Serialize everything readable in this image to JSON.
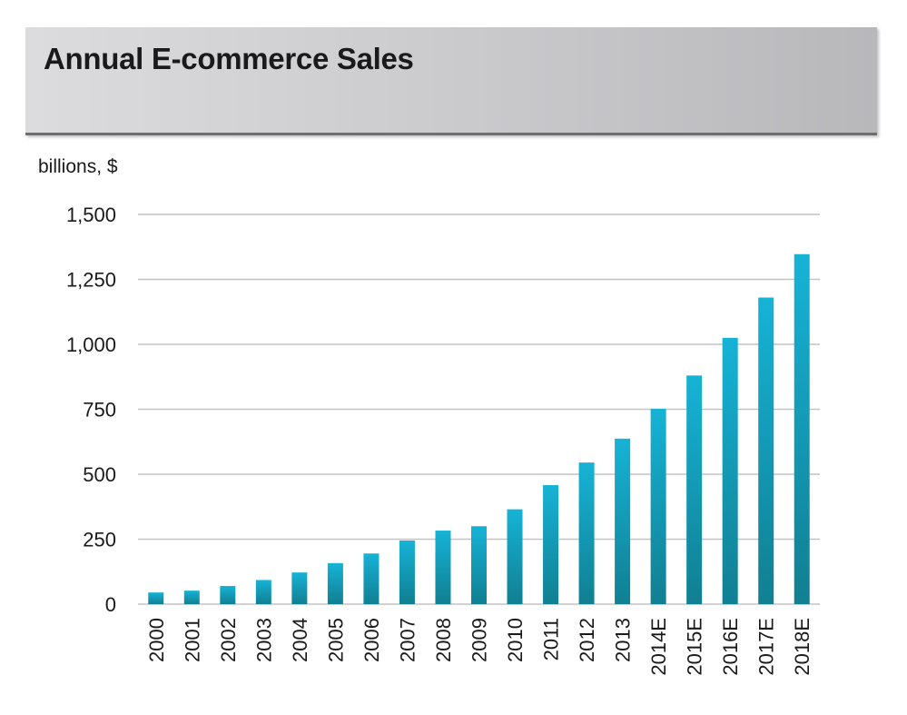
{
  "header": {
    "title": "Annual E-commerce Sales"
  },
  "chart_data": {
    "type": "bar",
    "title": "Annual E-commerce Sales",
    "ylabel": "billions, $",
    "xlabel": "",
    "ylim": [
      0,
      1500
    ],
    "yticks": [
      0,
      250,
      500,
      750,
      1000,
      1250,
      1500
    ],
    "ytick_labels": [
      "0",
      "250",
      "500",
      "750",
      "1,000",
      "1,250",
      "1,500"
    ],
    "grid": true,
    "categories": [
      "2000",
      "2001",
      "2002",
      "2003",
      "2004",
      "2005",
      "2006",
      "2007",
      "2008",
      "2009",
      "2010",
      "2011",
      "2012",
      "2013",
      "2014E",
      "2015E",
      "2016E",
      "2017E",
      "2018E"
    ],
    "values": [
      45,
      52,
      70,
      93,
      122,
      158,
      195,
      245,
      283,
      300,
      365,
      458,
      545,
      637,
      752,
      880,
      1025,
      1180,
      1347
    ],
    "colors": {
      "bar_top": "#16b3d6",
      "bar_bottom": "#117f92",
      "grid": "#c4c4c4"
    }
  }
}
